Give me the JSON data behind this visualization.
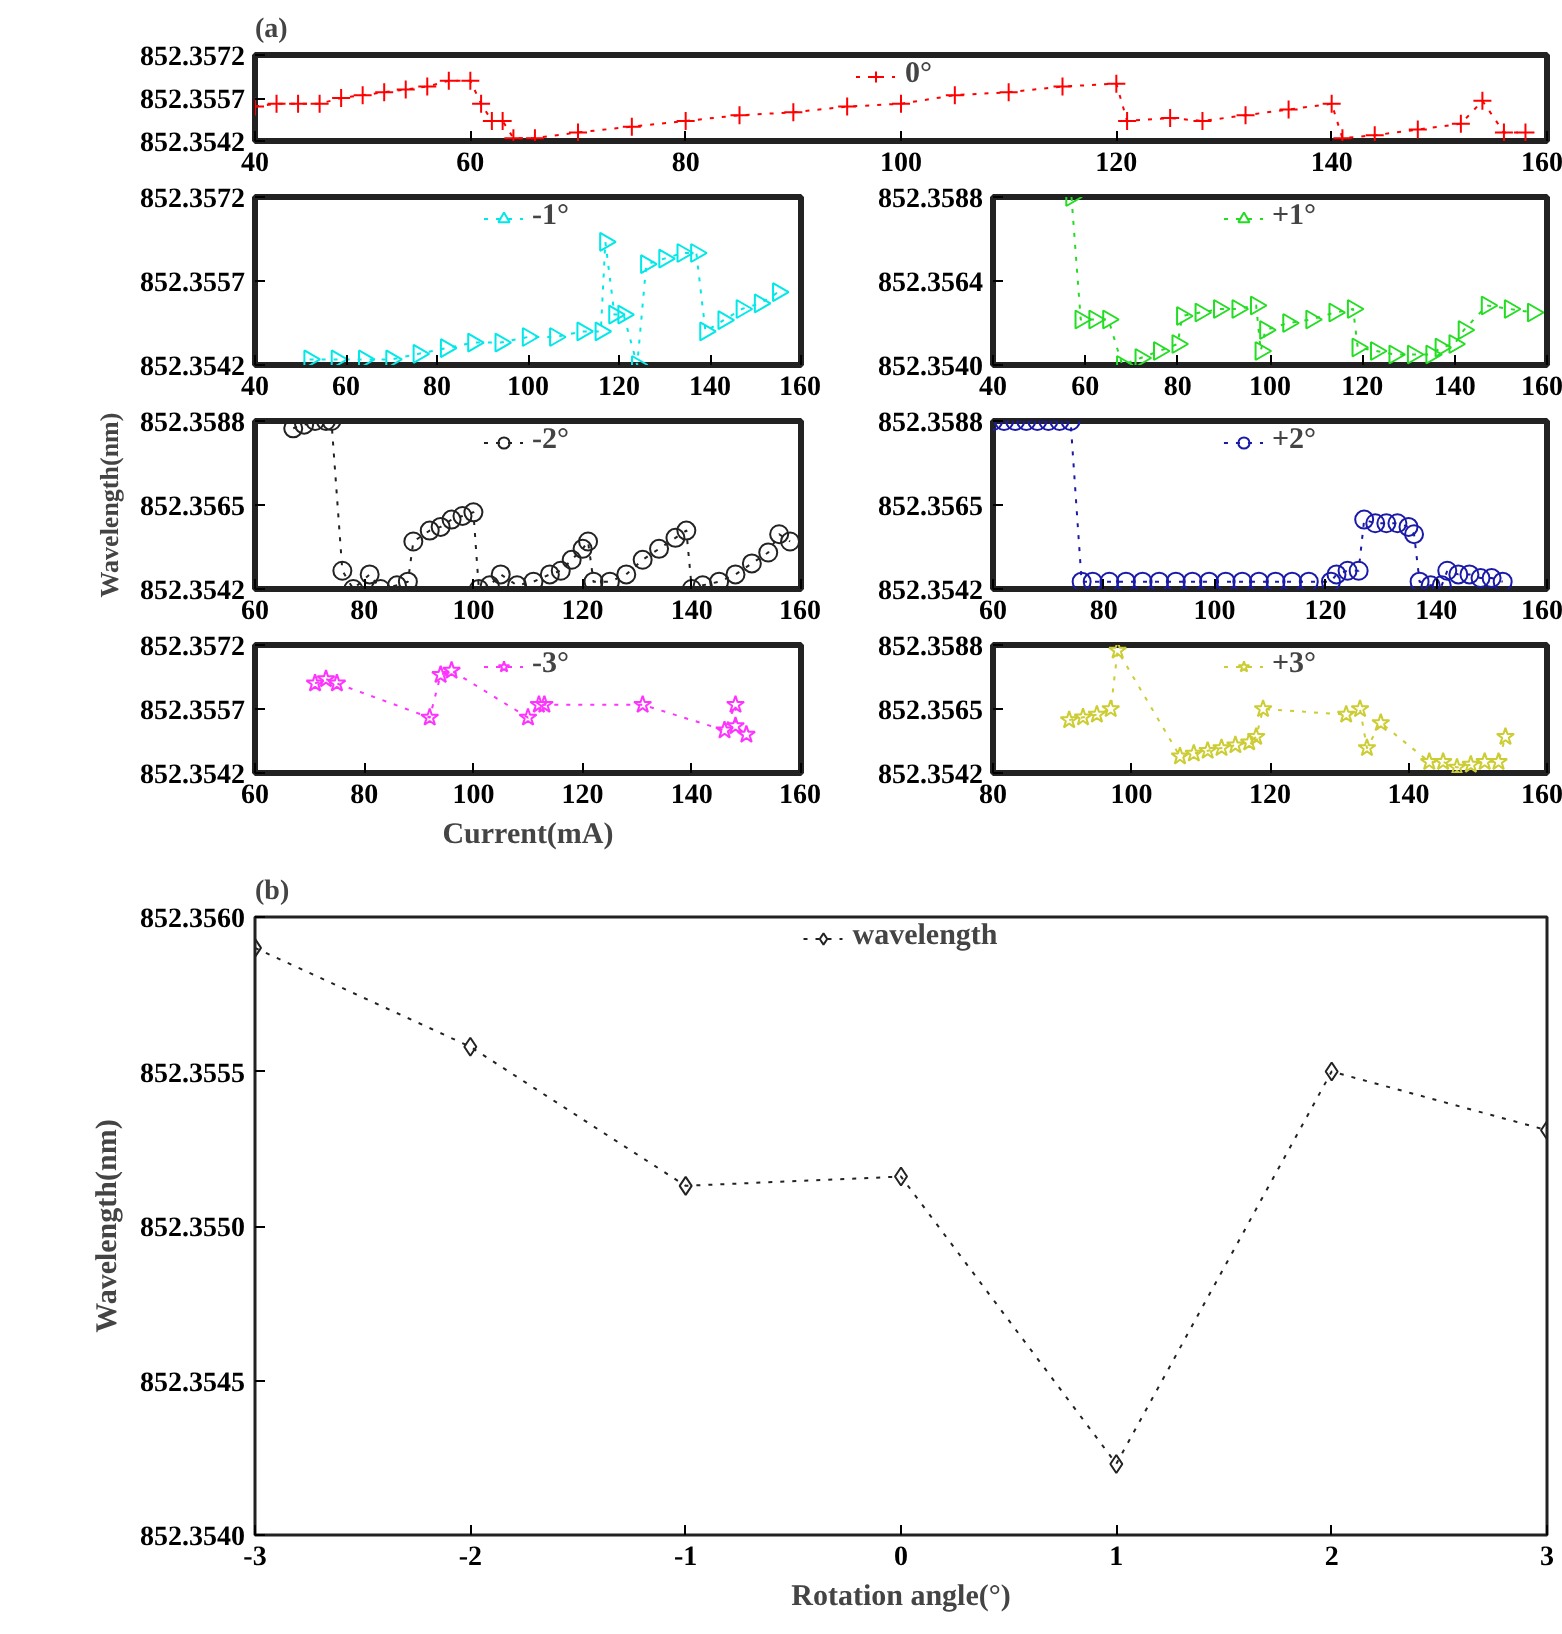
{
  "chart_data": [
    {
      "type": "line",
      "annotations": [
        "(a)"
      ],
      "legend": "top",
      "marker": "cross",
      "line_style": "dotted",
      "xlim": [
        40,
        160
      ],
      "xticks": [
        40,
        60,
        80,
        100,
        120,
        140,
        160
      ],
      "ylim": [
        852.3542,
        852.3572
      ],
      "yticks": [
        852.3542,
        852.3557,
        852.3572
      ],
      "series": [
        {
          "name": "0°",
          "color": "#ff0000",
          "x": [
            40,
            42,
            44,
            46,
            48,
            50,
            52,
            54,
            56,
            58,
            60,
            61,
            62,
            63,
            64,
            66,
            70,
            75,
            80,
            85,
            90,
            95,
            100,
            105,
            110,
            115,
            120,
            121,
            125,
            128,
            132,
            136,
            140,
            141,
            144,
            148,
            152,
            154,
            156,
            158
          ],
          "values": [
            852.3554,
            852.3555,
            852.3555,
            852.3555,
            852.3557,
            852.3558,
            852.3559,
            852.356,
            852.3561,
            852.3563,
            852.3563,
            852.3555,
            852.3549,
            852.3549,
            852.3543,
            852.3543,
            852.3545,
            852.3547,
            852.3549,
            852.3551,
            852.3552,
            852.3554,
            852.3555,
            852.3558,
            852.3559,
            852.3561,
            852.3562,
            852.3549,
            852.355,
            852.3549,
            852.3551,
            852.3553,
            852.3555,
            852.3543,
            852.3544,
            852.3546,
            852.3548,
            852.3556,
            852.3545,
            852.3545
          ]
        }
      ]
    },
    {
      "type": "line",
      "legend": "top",
      "marker": "triangle",
      "line_style": "dotted",
      "xlim": [
        40,
        160
      ],
      "xticks": [
        40,
        60,
        80,
        100,
        120,
        140,
        160
      ],
      "ylim": [
        852.3542,
        852.3572
      ],
      "yticks": [
        852.3542,
        852.3557,
        852.3572
      ],
      "series": [
        {
          "name": "-1°",
          "color": "#00e8e8",
          "x": [
            52,
            58,
            64,
            70,
            76,
            82,
            88,
            94,
            100,
            106,
            112,
            116,
            117,
            119,
            121,
            124,
            126,
            130,
            134,
            137,
            139,
            143,
            147,
            151,
            155
          ],
          "values": [
            852.3543,
            852.3543,
            852.3543,
            852.3543,
            852.3544,
            852.3545,
            852.3546,
            852.3546,
            852.3547,
            852.3547,
            852.3548,
            852.3548,
            852.3564,
            852.3551,
            852.3551,
            852.3542,
            852.356,
            852.3561,
            852.3562,
            852.3562,
            852.3548,
            852.355,
            852.3552,
            852.3553,
            852.3555
          ]
        }
      ]
    },
    {
      "type": "line",
      "legend": "top",
      "marker": "triangle",
      "line_style": "dotted",
      "xlim": [
        40,
        160
      ],
      "xticks": [
        40,
        60,
        80,
        100,
        120,
        140,
        160
      ],
      "ylim": [
        852.354,
        852.3588
      ],
      "yticks": [
        {
          "value": 852.354,
          "label": "852.3540"
        },
        852.3564,
        852.3588
      ],
      "series": [
        {
          "name": "+1°",
          "color": "#22dd22",
          "x": [
            57,
            59,
            62,
            65,
            68,
            72,
            76,
            80,
            81,
            85,
            89,
            93,
            97,
            98,
            99,
            104,
            109,
            114,
            118,
            119,
            123,
            127,
            131,
            135,
            137,
            140,
            142,
            147,
            152,
            157
          ],
          "values": [
            852.3588,
            852.3553,
            852.3553,
            852.3553,
            852.354,
            852.3542,
            852.3544,
            852.3546,
            852.3554,
            852.3555,
            852.3556,
            852.3556,
            852.3557,
            852.3544,
            852.355,
            852.3552,
            852.3553,
            852.3555,
            852.3556,
            852.3545,
            852.3544,
            852.3543,
            852.3543,
            852.3543,
            852.3545,
            852.3546,
            852.355,
            852.3557,
            852.3556,
            852.3555
          ]
        }
      ]
    },
    {
      "type": "line",
      "ylabel": "Wavelength(nm)",
      "legend": "top",
      "marker": "circle",
      "line_style": "dotted",
      "xlim": [
        60,
        160
      ],
      "xticks": [
        60,
        80,
        100,
        120,
        140,
        160
      ],
      "ylim": [
        852.3542,
        852.3588
      ],
      "yticks": [
        852.3542,
        852.3565,
        852.3588
      ],
      "series": [
        {
          "name": "-2°",
          "color": "#222222",
          "x": [
            67,
            69,
            71,
            73,
            74,
            76,
            78,
            81,
            83,
            86,
            88,
            89,
            92,
            94,
            96,
            98,
            100,
            101,
            103,
            105,
            108,
            111,
            114,
            116,
            118,
            120,
            121,
            122,
            125,
            128,
            131,
            134,
            137,
            139,
            140,
            142,
            145,
            148,
            151,
            154,
            156,
            158
          ],
          "values": [
            852.3586,
            852.3587,
            852.3588,
            852.3588,
            852.3588,
            852.3547,
            852.3542,
            852.3546,
            852.3542,
            852.3543,
            852.3544,
            852.3555,
            852.3558,
            852.3559,
            852.3561,
            852.3562,
            852.3563,
            852.3542,
            852.3543,
            852.3546,
            852.3543,
            852.3544,
            852.3546,
            852.3547,
            852.355,
            852.3553,
            852.3555,
            852.3544,
            852.3544,
            852.3546,
            852.355,
            852.3553,
            852.3556,
            852.3558,
            852.3542,
            852.3543,
            852.3544,
            852.3546,
            852.3549,
            852.3552,
            852.3557,
            852.3555
          ]
        }
      ]
    },
    {
      "type": "line",
      "legend": "top",
      "marker": "circle",
      "line_style": "dotted",
      "xlim": [
        60,
        160
      ],
      "xticks": [
        60,
        80,
        100,
        120,
        140,
        160
      ],
      "ylim": [
        852.3542,
        852.3588
      ],
      "yticks": [
        852.3542,
        852.3565,
        852.3588
      ],
      "series": [
        {
          "name": "+2°",
          "color": "#1a1aaa",
          "x": [
            60,
            62,
            64,
            66,
            68,
            70,
            72,
            74,
            76,
            78,
            81,
            84,
            87,
            90,
            93,
            96,
            99,
            102,
            105,
            108,
            111,
            114,
            117,
            121,
            122,
            124,
            126,
            127,
            129,
            131,
            133,
            135,
            136,
            137,
            139,
            141,
            142,
            144,
            146,
            148,
            150,
            152
          ],
          "values": [
            852.3588,
            852.3588,
            852.3588,
            852.3588,
            852.3588,
            852.3588,
            852.3588,
            852.3588,
            852.3544,
            852.3544,
            852.3544,
            852.3544,
            852.3544,
            852.3544,
            852.3544,
            852.3544,
            852.3544,
            852.3544,
            852.3544,
            852.3544,
            852.3544,
            852.3544,
            852.3544,
            852.3544,
            852.3546,
            852.3547,
            852.3547,
            852.3561,
            852.356,
            852.356,
            852.356,
            852.3559,
            852.3557,
            852.3544,
            852.3543,
            852.3543,
            852.3547,
            852.3546,
            852.3546,
            852.3545,
            852.3545,
            852.3544
          ]
        }
      ]
    },
    {
      "type": "line",
      "xlabel": "Current(mA)",
      "legend": "top",
      "marker": "star",
      "line_style": "dotted",
      "xlim": [
        60,
        160
      ],
      "xticks": [
        60,
        80,
        100,
        120,
        140,
        160
      ],
      "ylim": [
        852.3542,
        852.3572
      ],
      "yticks": [
        852.3542,
        852.3557,
        852.3572
      ],
      "series": [
        {
          "name": "-3°",
          "color": "#ff33ff",
          "x": [
            71,
            73,
            75,
            92,
            94,
            96,
            110,
            112,
            113,
            131,
            146,
            148,
            148,
            150
          ],
          "values": [
            852.3563,
            852.3564,
            852.3563,
            852.3555,
            852.3565,
            852.3566,
            852.3555,
            852.3558,
            852.3558,
            852.3558,
            852.3552,
            852.3558,
            852.3553,
            852.3551
          ]
        }
      ]
    },
    {
      "type": "line",
      "legend": "top",
      "marker": "star",
      "line_style": "dotted",
      "xlim": [
        80,
        160
      ],
      "xticks": [
        80,
        100,
        120,
        140,
        160
      ],
      "ylim": [
        852.3542,
        852.3588
      ],
      "yticks": [
        852.3542,
        852.3565,
        852.3588
      ],
      "series": [
        {
          "name": "+3°",
          "color": "#cccc33",
          "x": [
            91,
            93,
            95,
            97,
            98,
            107,
            109,
            111,
            113,
            115,
            117,
            118,
            119,
            131,
            133,
            134,
            136,
            143,
            145,
            147,
            149,
            151,
            153,
            154
          ],
          "values": [
            852.3561,
            852.3562,
            852.3563,
            852.3565,
            852.3586,
            852.3548,
            852.3549,
            852.355,
            852.3551,
            852.3552,
            852.3553,
            852.3555,
            852.3565,
            852.3563,
            852.3565,
            852.3551,
            852.356,
            852.3546,
            852.3546,
            852.3544,
            852.3545,
            852.3546,
            852.3546,
            852.3555
          ]
        }
      ]
    },
    {
      "type": "line",
      "annotations": [
        "(b)"
      ],
      "xlabel": "Rotation angle(°)",
      "ylabel": "Wavelength(nm)",
      "legend": "top",
      "marker": "diamond",
      "line_style": "dotted",
      "xlim": [
        -3,
        3
      ],
      "xticks": [
        -3,
        -2,
        -1,
        0,
        1,
        2,
        3
      ],
      "ylim": [
        852.354,
        852.356
      ],
      "yticks": [
        {
          "value": 852.354,
          "label": "852.3540"
        },
        852.3545,
        {
          "value": 852.355,
          "label": "852.3550"
        },
        852.3555,
        {
          "value": 852.356,
          "label": "852.3560"
        }
      ],
      "series": [
        {
          "name": "wavelength",
          "color": "#222222",
          "x": [
            -3,
            -2,
            -1,
            0,
            1,
            2,
            3
          ],
          "values": [
            852.3559,
            852.35558,
            852.35513,
            852.35516,
            852.35423,
            852.3555,
            852.35531
          ]
        }
      ]
    }
  ]
}
